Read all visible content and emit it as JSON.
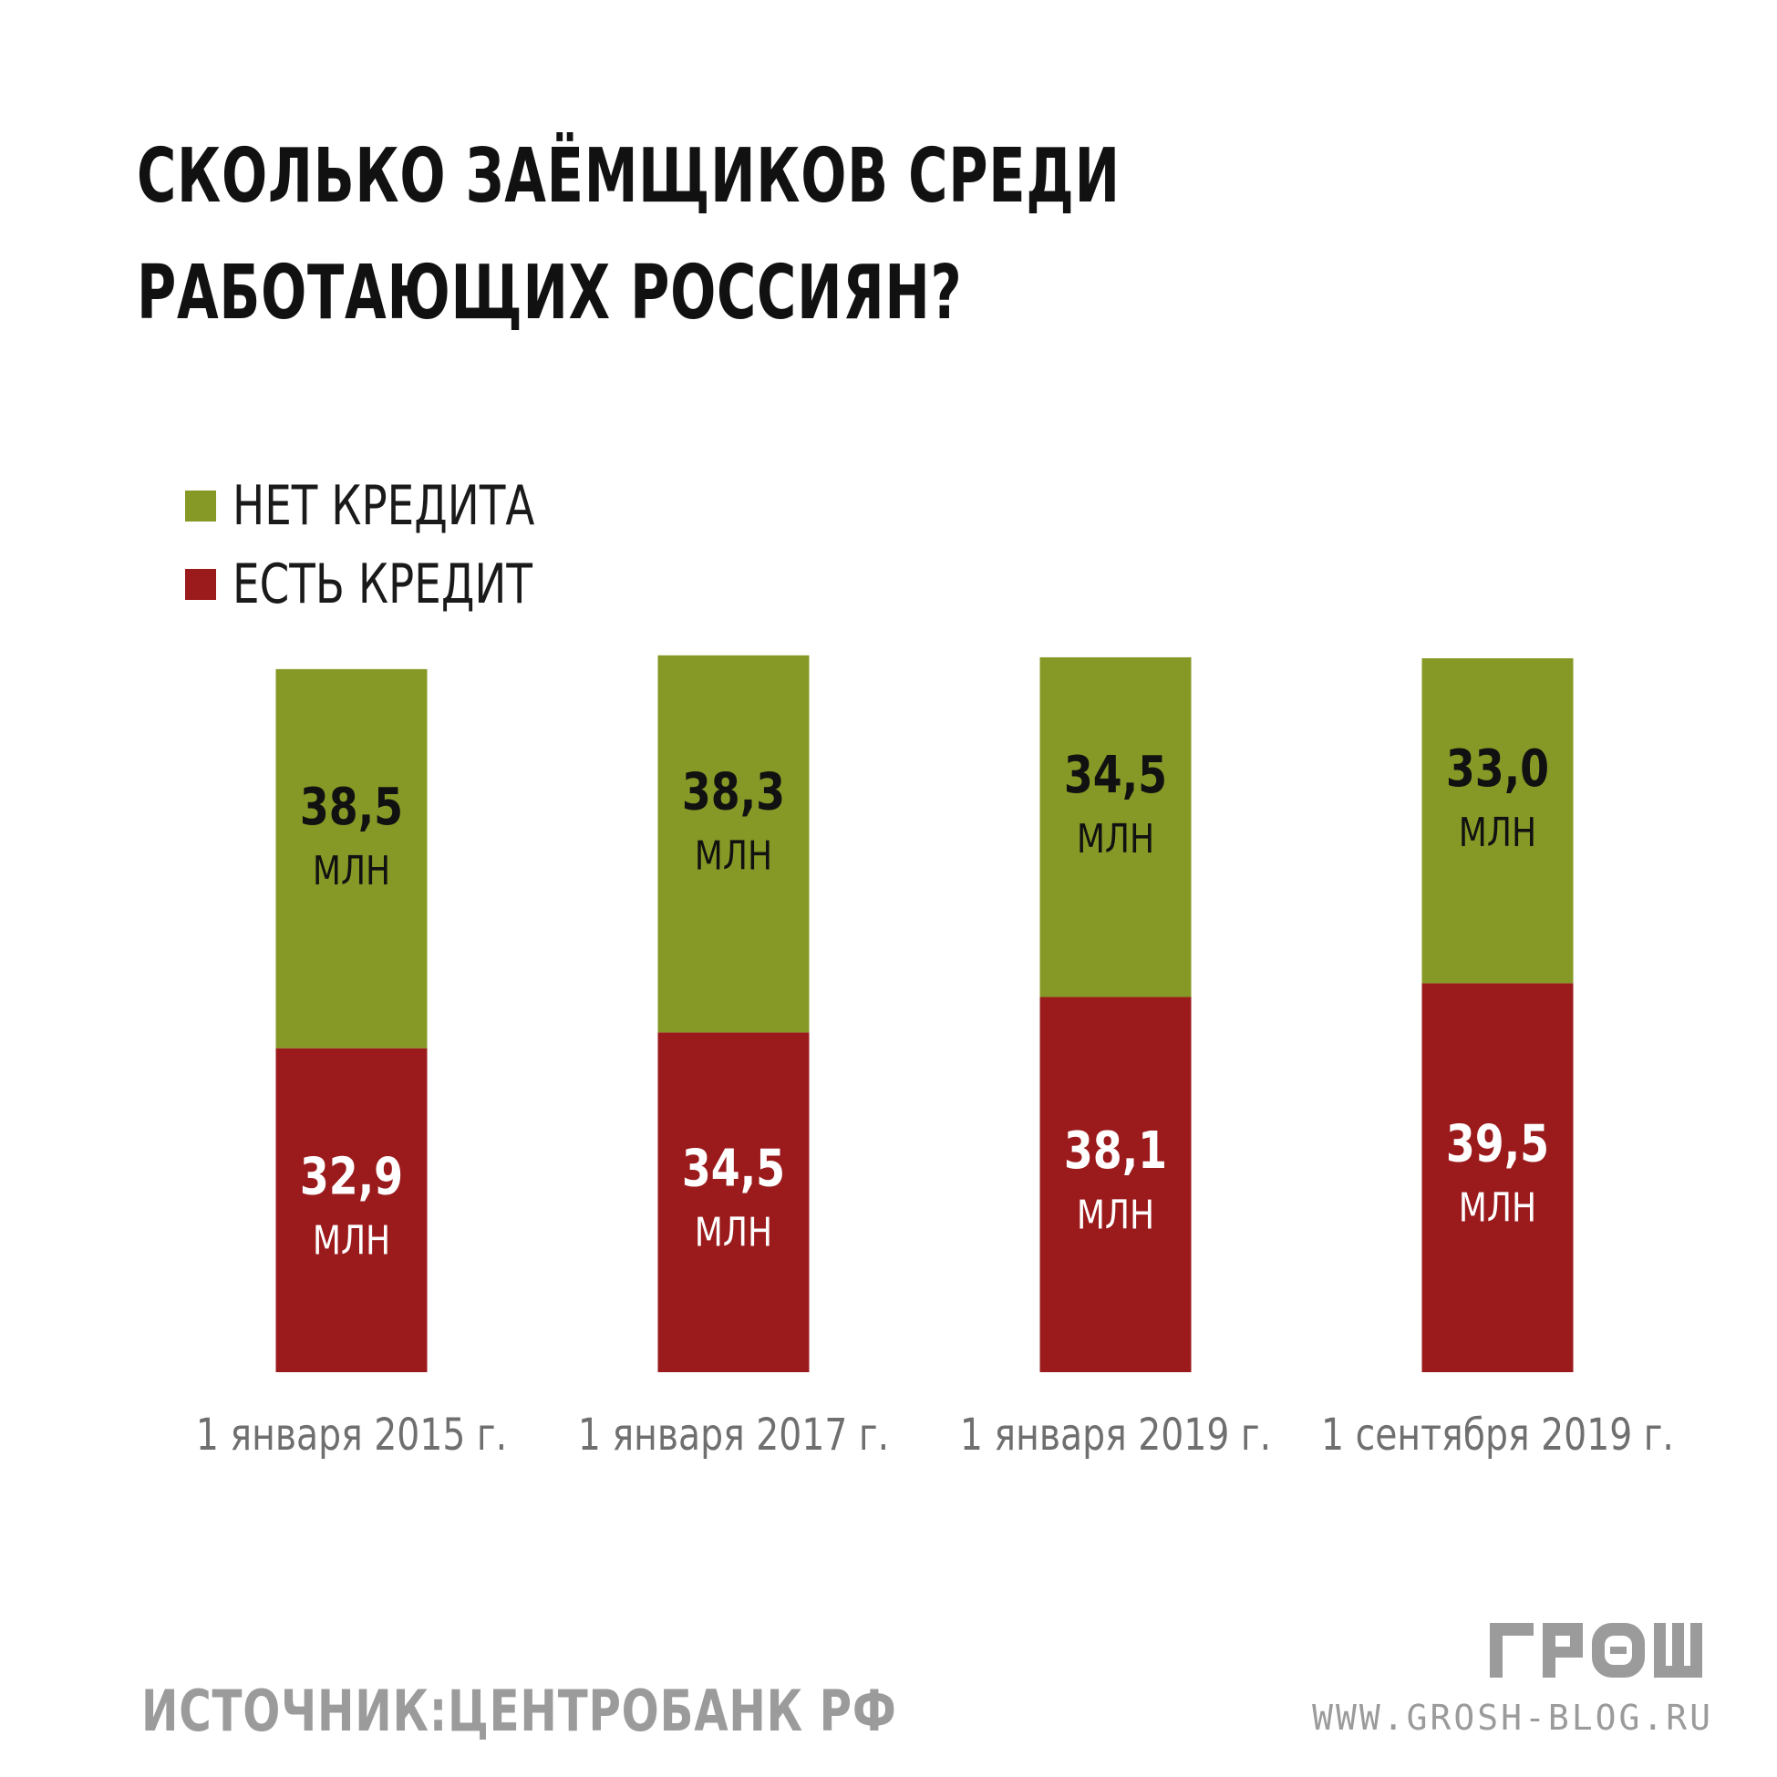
{
  "title": "СКОЛЬКО ЗАЁМЩИКОВ СРЕДИ РАБОТАЮЩИХ РОССИЯН?",
  "source": "ИСТОЧНИК:ЦЕНТРОБАНК РФ",
  "website": "WWW.GROSH-BLOG.RU",
  "logo_text": "ГРОШ",
  "colors": {
    "no_credit": "#869926",
    "has_credit": "#9b1b1d",
    "text_dark": "#111111",
    "axis_label": "#6f6f6f",
    "footer_grey": "#9b9b9b"
  },
  "legend": [
    {
      "label": "НЕТ КРЕДИТА",
      "color": "#869926"
    },
    {
      "label": "ЕСТЬ КРЕДИТ",
      "color": "#9b1b1d"
    }
  ],
  "chart_data": {
    "type": "bar",
    "stacked": true,
    "categories": [
      "1 января 2015 г.",
      "1 января 2017 г.",
      "1 января 2019 г.",
      "1 сентября 2019 г."
    ],
    "unit": "МЛН",
    "series": [
      {
        "name": "ЕСТЬ КРЕДИТ",
        "color": "#9b1b1d",
        "values": [
          32.9,
          34.5,
          38.1,
          39.5
        ],
        "labels": [
          "32,9",
          "34,5",
          "38,1",
          "39,5"
        ]
      },
      {
        "name": "НЕТ КРЕДИТА",
        "color": "#869926",
        "values": [
          38.5,
          38.3,
          34.5,
          33.0
        ],
        "labels": [
          "38,5",
          "38,3",
          "34,5",
          "33,0"
        ]
      }
    ],
    "grid": false,
    "legend_position": "top-left",
    "axes_visible": false
  }
}
